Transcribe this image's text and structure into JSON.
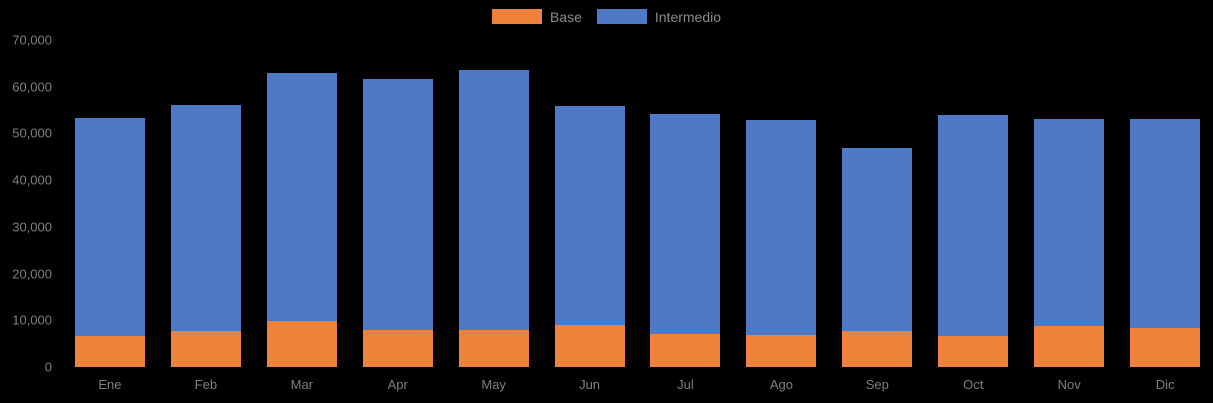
{
  "colors": {
    "background": "#000000",
    "axis_text": "#7f7f7f",
    "legend_text": "#8a8a8a",
    "base": "#f0813a",
    "intermedio": "#4d79c7"
  },
  "legend": {
    "items": [
      {
        "label": "Base",
        "color": "#f0813a"
      },
      {
        "label": "Intermedio",
        "color": "#4d79c7"
      }
    ]
  },
  "chart_data": {
    "type": "bar",
    "stacked": true,
    "title": "",
    "xlabel": "",
    "ylabel": "",
    "categories": [
      "Ene",
      "Feb",
      "Mar",
      "Apr",
      "May",
      "Jun",
      "Jul",
      "Ago",
      "Sep",
      "Oct",
      "Nov",
      "Dic"
    ],
    "series": [
      {
        "name": "Base",
        "color": "#f0813a",
        "values": [
          6600,
          7700,
          9900,
          8000,
          8000,
          8900,
          7000,
          6800,
          7700,
          6600,
          8800,
          8300
        ]
      },
      {
        "name": "Intermedio",
        "color": "#4d79c7",
        "values": [
          46800,
          48400,
          53000,
          53600,
          55500,
          46900,
          47200,
          46100,
          39100,
          47300,
          44200,
          44700
        ]
      }
    ],
    "totals": [
      53400,
      56100,
      62900,
      61600,
      63500,
      55800,
      54200,
      52900,
      46800,
      53900,
      53000,
      53000
    ],
    "ylim": [
      0,
      70000
    ],
    "ytick_interval": 10000,
    "ytick_labels": [
      "0",
      "10,000",
      "20,000",
      "30,000",
      "40,000",
      "50,000",
      "60,000",
      "70,000"
    ],
    "legend_position": "top-center",
    "grid": false
  }
}
